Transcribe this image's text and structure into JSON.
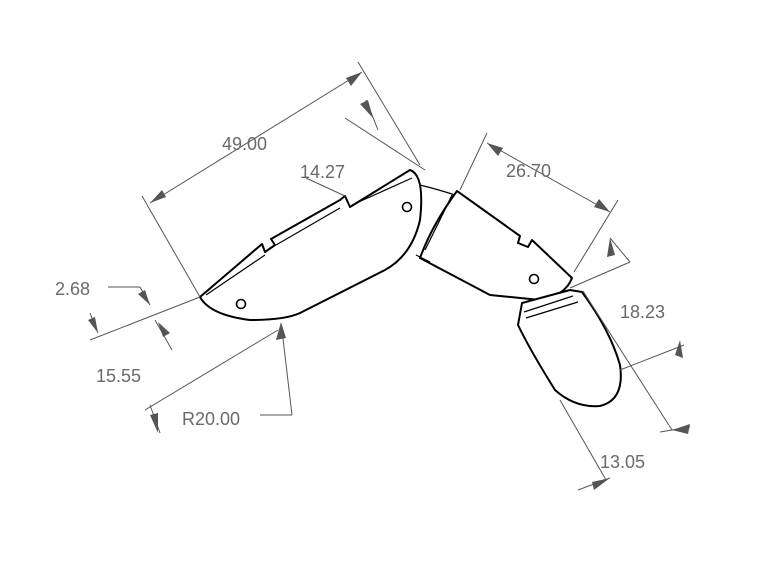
{
  "dimensions": {
    "d_49": "49.00",
    "d_14_27": "14.27",
    "d_26_70": "26.70",
    "d_2_68": "2.68",
    "d_15_55": "15.55",
    "d_r20": "R20.00",
    "d_18_23": "18.23",
    "d_13_05": "13.05"
  },
  "colors": {
    "line": "#000000",
    "dimension": "#555555",
    "text": "#6a6a6a",
    "background": "#ffffff"
  }
}
